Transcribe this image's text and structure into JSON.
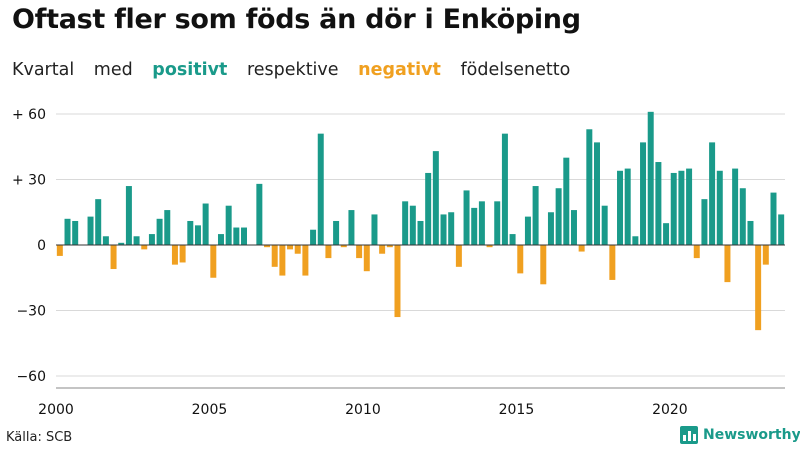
{
  "title": "Oftast fler som föds än dör i Enköping",
  "subtitle": {
    "w1": "Kvartal",
    "w2": "med",
    "positive": "positivt",
    "w3": "respektive",
    "negative": "negativt",
    "w4": "födelsenetto"
  },
  "source": "Källa: SCB",
  "brand": "Newsworthy",
  "colors": {
    "positive": "#1a9a8a",
    "negative": "#f0a020",
    "grid": "#d9d9d9",
    "axis": "#333333"
  },
  "chart_data": {
    "type": "bar",
    "title": "",
    "xlabel": "",
    "ylabel": "",
    "x_start": "2000 Q1",
    "ylim": [
      -60,
      60
    ],
    "y_ticks": [
      {
        "value": 60,
        "label": "+ 60"
      },
      {
        "value": 30,
        "label": "+ 30"
      },
      {
        "value": 0,
        "label": "0"
      },
      {
        "value": -30,
        "label": "−30"
      },
      {
        "value": -60,
        "label": "−60"
      }
    ],
    "x_ticks": [
      "2000",
      "2005",
      "2010",
      "2015",
      "2020"
    ],
    "grid": true,
    "values": [
      -5,
      12,
      11,
      0,
      13,
      21,
      4,
      -11,
      1,
      27,
      4,
      -2,
      5,
      12,
      16,
      -9,
      -8,
      11,
      9,
      19,
      -15,
      5,
      18,
      8,
      8,
      0,
      28,
      -1,
      -10,
      -14,
      -2,
      -4,
      -14,
      7,
      51,
      -6,
      11,
      -1,
      16,
      -6,
      -12,
      14,
      -4,
      -1,
      -33,
      20,
      18,
      11,
      33,
      43,
      14,
      15,
      -10,
      25,
      17,
      20,
      -1,
      20,
      51,
      5,
      -13,
      13,
      27,
      -18,
      15,
      26,
      40,
      16,
      -3,
      53,
      47,
      18,
      -16,
      34,
      35,
      4,
      47,
      61,
      38,
      10,
      33,
      34,
      35,
      -6,
      21,
      47,
      34,
      -17,
      35,
      26,
      11,
      -39,
      -9,
      24,
      14
    ]
  }
}
